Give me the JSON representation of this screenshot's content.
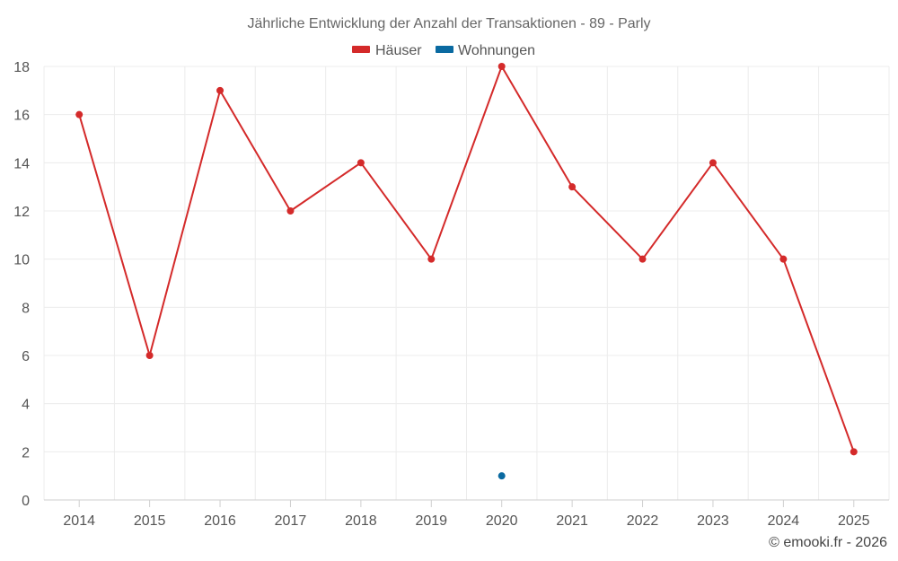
{
  "chart_data": {
    "type": "line",
    "title": "Jährliche Entwicklung der Anzahl der Transaktionen - 89 - Parly",
    "categories": [
      "2014",
      "2015",
      "2016",
      "2017",
      "2018",
      "2019",
      "2020",
      "2021",
      "2022",
      "2023",
      "2024",
      "2025"
    ],
    "series": [
      {
        "name": "Häuser",
        "color": "#d42a2a",
        "values": [
          16,
          6,
          17,
          12,
          14,
          10,
          18,
          13,
          10,
          14,
          10,
          2
        ]
      },
      {
        "name": "Wohnungen",
        "color": "#0a6aa1",
        "values": [
          null,
          null,
          null,
          null,
          null,
          null,
          1,
          null,
          null,
          null,
          null,
          null
        ]
      }
    ],
    "ylim": [
      0,
      18
    ],
    "yticks": [
      0,
      2,
      4,
      6,
      8,
      10,
      12,
      14,
      16,
      18
    ],
    "xlabel": "",
    "ylabel": "",
    "grid": true,
    "legend_position": "top-center"
  },
  "credit": "© emooki.fr - 2026"
}
